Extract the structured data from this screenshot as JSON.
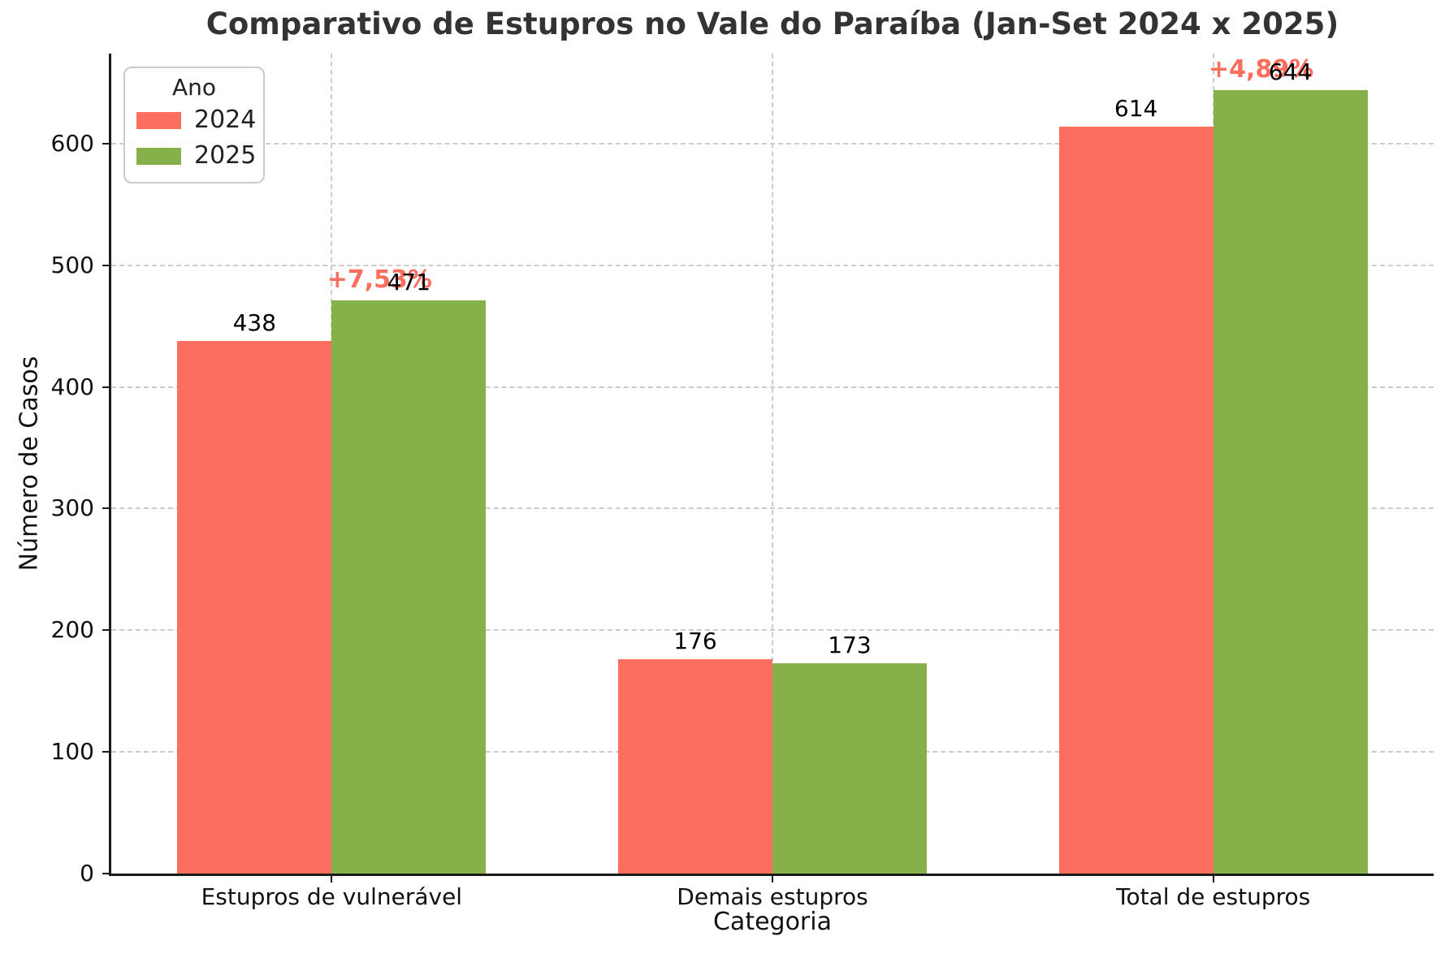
{
  "chart_data": {
    "type": "bar",
    "title": "Comparativo de Estupros no Vale do Paraíba (Jan-Set 2024 x 2025)",
    "xlabel": "Categoria",
    "ylabel": "Número de Casos",
    "legend_title": "Ano",
    "legend_position": "upper-left",
    "categories": [
      "Estupros de vulnerável",
      "Demais estupros",
      "Total de estupros"
    ],
    "series": [
      {
        "name": "2024",
        "color": "#fc6e5e",
        "values": [
          438,
          176,
          614
        ]
      },
      {
        "name": "2025",
        "color": "#86b04a",
        "values": [
          471,
          173,
          644
        ]
      }
    ],
    "value_labels": [
      "438",
      "471",
      "176",
      "173",
      "614",
      "644"
    ],
    "annotations": [
      {
        "category_index": 0,
        "series_index": 1,
        "text": "+7,53%",
        "color": "#fc6e5e"
      },
      {
        "category_index": 2,
        "series_index": 1,
        "text": "+4,89%",
        "color": "#fc6e5e"
      }
    ],
    "yticks": [
      0,
      100,
      200,
      300,
      400,
      500,
      600
    ],
    "ylim": [
      0,
      674
    ],
    "grid": "dashed horizontal and vertical",
    "background": "#ffffff"
  }
}
